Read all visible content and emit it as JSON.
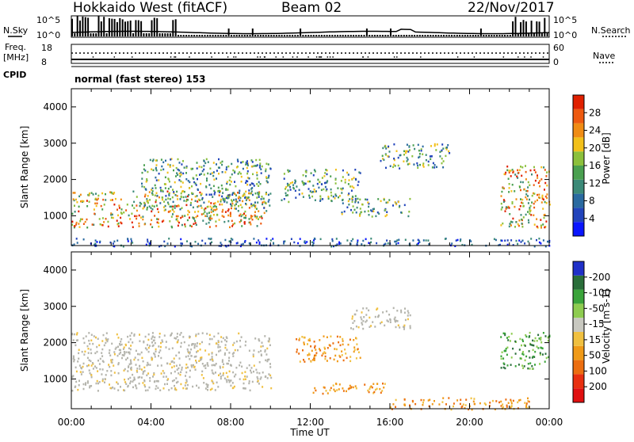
{
  "header": {
    "station": "Hokkaido West (fitACF)",
    "beam": "Beam 02",
    "date": "22/Nov/2017"
  },
  "status_panels": {
    "left_labels": {
      "nsky": "N.Sky",
      "freq": "Freq.",
      "mhz": "[MHz]",
      "cpid": "CPID"
    },
    "right_labels": {
      "nsearch": "N.Search",
      "nave": "Nave"
    },
    "noise_ticks": {
      "top": "10^5",
      "bottom": "10^0"
    },
    "freq_ticks": {
      "top": "18",
      "bottom": "8"
    },
    "nave_ticks": {
      "top": "60",
      "bottom": "0"
    },
    "cpid_text": "normal (fast stereo) 153"
  },
  "colors": {
    "power": [
      "#0a16ff",
      "#2244bb",
      "#2a6aa0",
      "#3c8a78",
      "#4aa050",
      "#8cc03c",
      "#f2c01a",
      "#f08c14",
      "#ee5a10",
      "#e02000"
    ],
    "velocity": [
      "#2030c8",
      "#2a6e3a",
      "#3aa43a",
      "#8ecc50",
      "#c8c8c0",
      "#f0c040",
      "#f09a18",
      "#ec6e10",
      "#e83010",
      "#e01010"
    ],
    "ground": "#b4b4ac"
  },
  "chart_data": [
    {
      "type": "heatmap",
      "panel": "power",
      "x_ticks": [
        "00:00",
        "04:00",
        "08:00",
        "12:00",
        "16:00",
        "20:00",
        "00:00"
      ],
      "xlim_hours": [
        0,
        24
      ],
      "ylabel": "Slant Range [km]",
      "y_ticks": [
        "1000",
        "2000",
        "3000",
        "4000"
      ],
      "ylim": [
        180,
        4500
      ],
      "colorbar": {
        "label": "Power [dB]",
        "ticks": [
          "4",
          "8",
          "12",
          "16",
          "20",
          "24",
          "28"
        ],
        "range": [
          0,
          30
        ]
      },
      "scatter_regions": [
        {
          "hours": [
            0,
            9.8
          ],
          "range_km": [
            700,
            1700
          ],
          "level": "high"
        },
        {
          "hours": [
            3.5,
            10
          ],
          "range_km": [
            1200,
            2600
          ],
          "level": "medium"
        },
        {
          "hours": [
            10.5,
            14.5
          ],
          "range_km": [
            1400,
            2300
          ],
          "level": "medium"
        },
        {
          "hours": [
            13.5,
            17
          ],
          "range_km": [
            1000,
            1500
          ],
          "level": "medium"
        },
        {
          "hours": [
            15.5,
            19
          ],
          "range_km": [
            2300,
            3000
          ],
          "level": "medium"
        },
        {
          "hours": [
            21.5,
            24
          ],
          "range_km": [
            700,
            2400
          ],
          "level": "high"
        },
        {
          "hours": [
            0,
            24
          ],
          "range_km": [
            180,
            400
          ],
          "level": "low"
        }
      ]
    },
    {
      "type": "heatmap",
      "panel": "velocity",
      "x_ticks": [
        "00:00",
        "04:00",
        "08:00",
        "12:00",
        "16:00",
        "20:00",
        "00:00"
      ],
      "xlabel": "Time UT",
      "xlim_hours": [
        0,
        24
      ],
      "ylabel": "Slant Range [km]",
      "y_ticks": [
        "1000",
        "2000",
        "3000",
        "4000"
      ],
      "ylim": [
        180,
        4500
      ],
      "colorbar": {
        "label": "Velocity [m s-1]",
        "ticks": [
          "200",
          "100",
          "50",
          "15",
          "-15",
          "-50",
          "-100",
          "-200"
        ],
        "range": [
          -250,
          250
        ]
      },
      "scatter_regions": [
        {
          "hours": [
            0,
            10
          ],
          "range_km": [
            700,
            2300
          ],
          "velocity": "ground"
        },
        {
          "hours": [
            11.2,
            14.5
          ],
          "range_km": [
            1500,
            2200
          ],
          "velocity": "negative"
        },
        {
          "hours": [
            14,
            17
          ],
          "range_km": [
            2400,
            3000
          ],
          "velocity": "ground"
        },
        {
          "hours": [
            12,
            16
          ],
          "range_km": [
            600,
            900
          ],
          "velocity": "negative"
        },
        {
          "hours": [
            21.5,
            24
          ],
          "range_km": [
            1300,
            2300
          ],
          "velocity": "positive"
        },
        {
          "hours": [
            16,
            23
          ],
          "range_km": [
            180,
            500
          ],
          "velocity": "negative"
        }
      ]
    }
  ]
}
